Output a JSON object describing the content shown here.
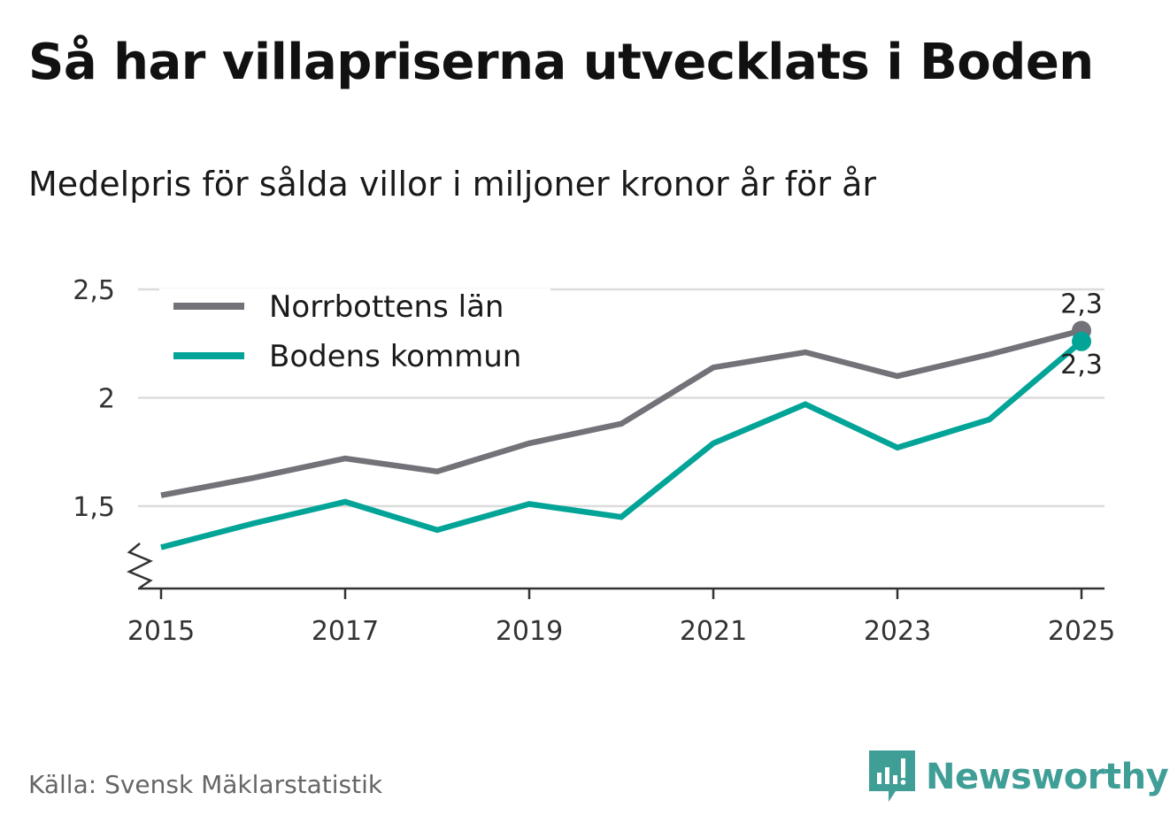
{
  "title": "Så har villapriserna utvecklats i Boden",
  "subtitle": "Medelpris för sålda villor i miljoner kronor år för år",
  "source": "Källa: Svensk Mäklarstatistik",
  "brand": {
    "name": "Newsworthy",
    "icon": "bar-chart-speech-bubble-icon",
    "color": "#3f9e96"
  },
  "chart_data": {
    "type": "line",
    "x": [
      2015,
      2016,
      2017,
      2018,
      2019,
      2020,
      2021,
      2022,
      2023,
      2024,
      2025
    ],
    "x_ticks": [
      {
        "value": 2015,
        "label": "2015"
      },
      {
        "value": 2017,
        "label": "2017"
      },
      {
        "value": 2019,
        "label": "2019"
      },
      {
        "value": 2021,
        "label": "2021"
      },
      {
        "value": 2023,
        "label": "2023"
      },
      {
        "value": 2025,
        "label": "2025"
      }
    ],
    "y_ticks": [
      {
        "value": 1.5,
        "label": "1,5"
      },
      {
        "value": 2.0,
        "label": "2"
      },
      {
        "value": 2.5,
        "label": "2,5"
      }
    ],
    "xlim": [
      2014.75,
      2025.25
    ],
    "ylim": [
      1.12,
      2.5
    ],
    "y_axis_break": true,
    "grid": true,
    "legend_position": "top-left",
    "series": [
      {
        "name": "Norrbottens län",
        "color": "#737278",
        "values": [
          1.55,
          1.63,
          1.72,
          1.66,
          1.79,
          1.88,
          2.14,
          2.21,
          2.1,
          2.2,
          2.31
        ],
        "end_label": "2,3",
        "end_label_position": "above"
      },
      {
        "name": "Bodens kommun",
        "color": "#03a498",
        "values": [
          1.31,
          1.42,
          1.52,
          1.39,
          1.51,
          1.45,
          1.79,
          1.97,
          1.77,
          1.9,
          2.26
        ],
        "end_label": "2,3",
        "end_label_position": "below"
      }
    ]
  }
}
